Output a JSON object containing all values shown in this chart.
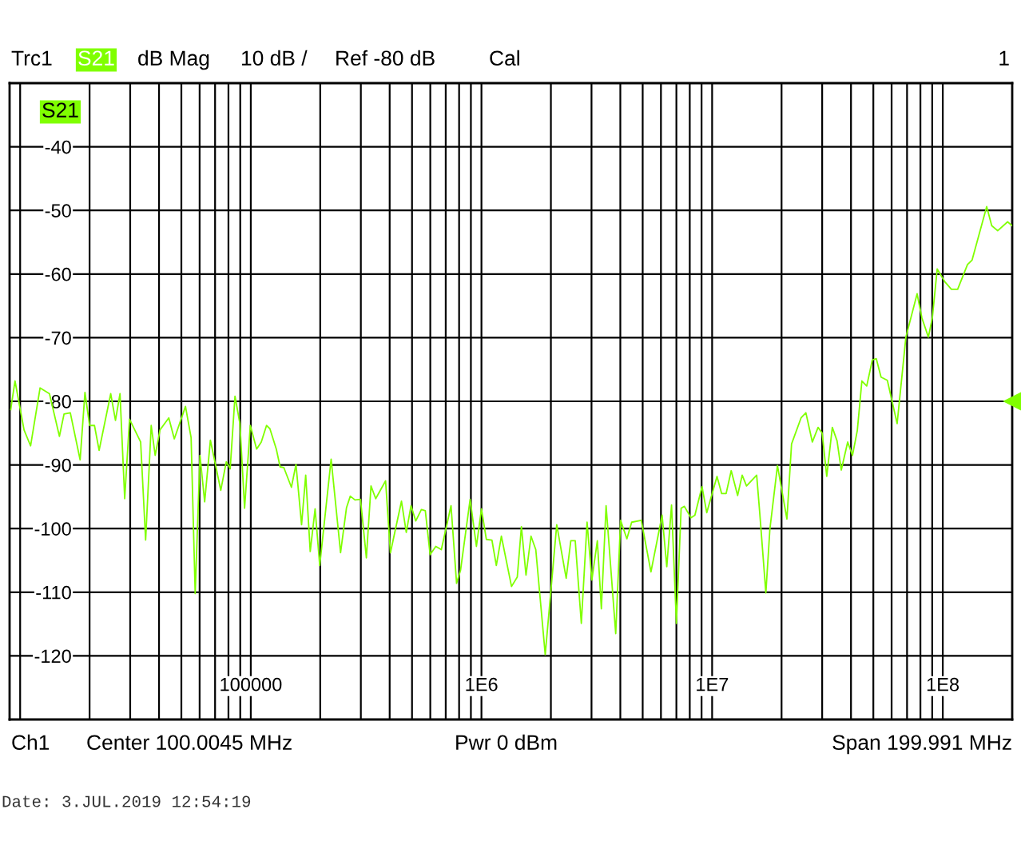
{
  "chart_data": {
    "type": "line",
    "x": [
      9100,
      9500,
      10400,
      11100,
      12200,
      13400,
      14800,
      15500,
      16500,
      18200,
      19100,
      20000,
      21000,
      22000,
      24700,
      25900,
      27100,
      28400,
      29800,
      33300,
      35000,
      37000,
      38500,
      40400,
      44100,
      46600,
      52100,
      55100,
      57400,
      60200,
      63100,
      66800,
      74100,
      78300,
      81400,
      85400,
      89700,
      94000,
      99500,
      106000,
      111000,
      117000,
      121000,
      129000,
      134000,
      139000,
      150000,
      157000,
      166000,
      173000,
      181000,
      190000,
      199000,
      223000,
      245000,
      260000,
      270000,
      283000,
      299000,
      317000,
      332000,
      348000,
      384000,
      403000,
      450000,
      472000,
      495000,
      519000,
      549000,
      571000,
      599000,
      634000,
      670000,
      738000,
      780000,
      812000,
      893000,
      951000,
      1000000,
      1050000,
      1110000,
      1160000,
      1220000,
      1350000,
      1430000,
      1490000,
      1560000,
      1640000,
      1720000,
      1890000,
      2120000,
      2330000,
      2440000,
      2550000,
      2710000,
      2870000,
      3010000,
      3180000,
      3310000,
      3470000,
      3820000,
      4010000,
      4270000,
      4480000,
      4930000,
      5430000,
      6070000,
      6360000,
      6670000,
      7000000,
      7340000,
      7580000,
      8090000,
      8420000,
      9040000,
      9480000,
      10500000,
      11000000,
      11500000,
      12100000,
      12900000,
      13500000,
      14100000,
      15600000,
      16100000,
      17100000,
      17800000,
      19200000,
      21100000,
      22100000,
      24300000,
      25500000,
      27200000,
      28800000,
      30000000,
      31400000,
      33200000,
      34800000,
      36300000,
      38700000,
      40600000,
      42600000,
      44600000,
      46800000,
      49500000,
      51500000,
      54000000,
      57500000,
      63400000,
      69200000,
      77400000,
      81200000,
      86600000,
      90100000,
      94600000,
      102000000,
      109000000,
      116000000,
      128000000,
      134000000,
      155000000,
      163000000,
      173000000,
      191000000,
      200000000
    ],
    "series": [
      {
        "name": "S21",
        "color": "#80ff00",
        "values": [
          -81.3,
          -76.8,
          -84.5,
          -87.0,
          -77.9,
          -78.8,
          -85.5,
          -82.0,
          -81.8,
          -89.2,
          -78.6,
          -83.8,
          -83.8,
          -87.7,
          -78.8,
          -83.0,
          -78.8,
          -95.3,
          -82.8,
          -86.4,
          -101.8,
          -83.8,
          -88.5,
          -84.5,
          -82.6,
          -85.9,
          -80.8,
          -85.7,
          -110.2,
          -88.5,
          -95.8,
          -86.1,
          -94.0,
          -89.5,
          -90.6,
          -79.2,
          -83.5,
          -96.8,
          -83.8,
          -87.5,
          -86.4,
          -83.8,
          -84.3,
          -87.5,
          -90.3,
          -90.4,
          -93.5,
          -89.9,
          -99.4,
          -91.6,
          -103.6,
          -96.9,
          -105.8,
          -89.1,
          -103.8,
          -96.7,
          -94.9,
          -95.5,
          -95.4,
          -104.6,
          -93.3,
          -95.3,
          -92.5,
          -103.8,
          -95.7,
          -100.6,
          -96.4,
          -98.8,
          -97.0,
          -97.2,
          -104.1,
          -102.8,
          -103.3,
          -96.4,
          -108.6,
          -106.5,
          -95.4,
          -102.8,
          -96.9,
          -101.7,
          -101.8,
          -105.8,
          -101.2,
          -109.1,
          -107.6,
          -99.7,
          -107.3,
          -101.2,
          -103.3,
          -119.8,
          -99.4,
          -107.8,
          -101.9,
          -101.9,
          -114.9,
          -99.0,
          -108.1,
          -101.9,
          -112.6,
          -96.4,
          -116.5,
          -98.7,
          -101.6,
          -99.0,
          -98.7,
          -106.8,
          -97.9,
          -106.0,
          -96.3,
          -114.9,
          -96.8,
          -96.5,
          -98.3,
          -97.9,
          -93.4,
          -97.5,
          -91.8,
          -94.5,
          -94.5,
          -90.9,
          -94.8,
          -91.6,
          -93.3,
          -91.6,
          -97.7,
          -110.1,
          -100.1,
          -90.1,
          -98.5,
          -86.7,
          -82.6,
          -81.8,
          -86.4,
          -84.1,
          -85.0,
          -91.8,
          -84.1,
          -86.2,
          -90.8,
          -86.4,
          -88.5,
          -84.6,
          -76.8,
          -77.6,
          -73.5,
          -73.3,
          -76.2,
          -76.7,
          -83.5,
          -69.9,
          -63.1,
          -66.9,
          -69.9,
          -66.9,
          -59.2,
          -61.2,
          -62.4,
          -62.4,
          -58.5,
          -57.8,
          -49.4,
          -52.4,
          -53.2,
          -51.8,
          -52.4
        ]
      }
    ],
    "log": "x",
    "grid": true,
    "xlim": [
      9000,
      200000000
    ],
    "xticks": [
      {
        "value": 10000,
        "label": null
      },
      {
        "value": 20000,
        "label": null
      },
      {
        "value": 30000,
        "label": null
      },
      {
        "value": 40000,
        "label": null
      },
      {
        "value": 50000,
        "label": null
      },
      {
        "value": 60000,
        "label": null
      },
      {
        "value": 70000,
        "label": null
      },
      {
        "value": 80000,
        "label": null
      },
      {
        "value": 90000,
        "label": null
      },
      {
        "value": 100000,
        "label": "100000"
      },
      {
        "value": 200000,
        "label": null
      },
      {
        "value": 300000,
        "label": null
      },
      {
        "value": 400000,
        "label": null
      },
      {
        "value": 500000,
        "label": null
      },
      {
        "value": 600000,
        "label": null
      },
      {
        "value": 700000,
        "label": null
      },
      {
        "value": 800000,
        "label": null
      },
      {
        "value": 900000,
        "label": null
      },
      {
        "value": 1000000,
        "label": "1E6"
      },
      {
        "value": 2000000,
        "label": null
      },
      {
        "value": 3000000,
        "label": null
      },
      {
        "value": 4000000,
        "label": null
      },
      {
        "value": 5000000,
        "label": null
      },
      {
        "value": 6000000,
        "label": null
      },
      {
        "value": 7000000,
        "label": null
      },
      {
        "value": 8000000,
        "label": null
      },
      {
        "value": 9000000,
        "label": null
      },
      {
        "value": 10000000,
        "label": "1E7"
      },
      {
        "value": 20000000,
        "label": null
      },
      {
        "value": 30000000,
        "label": null
      },
      {
        "value": 40000000,
        "label": null
      },
      {
        "value": 50000000,
        "label": null
      },
      {
        "value": 60000000,
        "label": null
      },
      {
        "value": 70000000,
        "label": null
      },
      {
        "value": 80000000,
        "label": null
      },
      {
        "value": 90000000,
        "label": null
      },
      {
        "value": 100000000,
        "label": "1E8"
      }
    ],
    "ylim": [
      -130,
      -30
    ],
    "yticks": [
      -40,
      -50,
      -60,
      -70,
      -80,
      -90,
      -100,
      -110,
      -120
    ],
    "annotations": [
      "Trc1",
      "S21",
      "dB Mag",
      "10 dB /",
      "Ref -80 dB",
      "Cal",
      "1",
      "Ch1",
      "Center 100.0045 MHz",
      "Pwr 0 dBm",
      "Span 199.991 MHz",
      "Date: 3.JUL.2019 12:54:19"
    ]
  }
}
